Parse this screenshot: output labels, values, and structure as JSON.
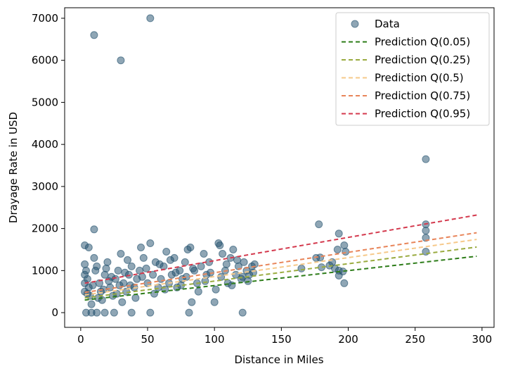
{
  "chart_data": {
    "type": "scatter",
    "title": "",
    "xlabel": "Distance in Miles",
    "ylabel": "Drayage Rate in USD",
    "xlim": [
      -12,
      309
    ],
    "ylim": [
      -350,
      7250
    ],
    "xticks": [
      0,
      50,
      100,
      150,
      200,
      250,
      300
    ],
    "yticks": [
      0,
      1000,
      2000,
      3000,
      4000,
      5000,
      6000,
      7000
    ],
    "grid": false,
    "legend_position": "top-right",
    "scatter": {
      "name": "Data",
      "color": "#1f4e6b",
      "points": [
        [
          52,
          7000
        ],
        [
          10,
          6600
        ],
        [
          30,
          6000
        ],
        [
          258,
          3650
        ],
        [
          258,
          2100
        ],
        [
          258,
          1950
        ],
        [
          258,
          1780
        ],
        [
          258,
          1450
        ],
        [
          10,
          1980
        ],
        [
          178,
          2100
        ],
        [
          193,
          1880
        ],
        [
          197,
          1600
        ],
        [
          192,
          1500
        ],
        [
          198,
          1450
        ],
        [
          190,
          1050
        ],
        [
          193,
          1000
        ],
        [
          196,
          980
        ],
        [
          197,
          700
        ],
        [
          193,
          880
        ],
        [
          188,
          1200
        ],
        [
          176,
          1300
        ],
        [
          179,
          1310
        ],
        [
          165,
          1050
        ],
        [
          180,
          1080
        ],
        [
          186,
          1120
        ],
        [
          3,
          1600
        ],
        [
          6,
          1550
        ],
        [
          10,
          1300
        ],
        [
          4,
          0
        ],
        [
          8,
          0
        ],
        [
          12,
          0
        ],
        [
          18,
          0
        ],
        [
          25,
          0
        ],
        [
          38,
          0
        ],
        [
          52,
          0
        ],
        [
          81,
          0
        ],
        [
          121,
          0
        ],
        [
          4,
          1000
        ],
        [
          5,
          800
        ],
        [
          6,
          600
        ],
        [
          7,
          400
        ],
        [
          8,
          200
        ],
        [
          12,
          1100
        ],
        [
          14,
          700
        ],
        [
          15,
          500
        ],
        [
          16,
          300
        ],
        [
          18,
          900
        ],
        [
          20,
          1200
        ],
        [
          22,
          600
        ],
        [
          24,
          400
        ],
        [
          26,
          800
        ],
        [
          28,
          1000
        ],
        [
          30,
          1400
        ],
        [
          32,
          700
        ],
        [
          34,
          500
        ],
        [
          36,
          900
        ],
        [
          38,
          1100
        ],
        [
          40,
          600
        ],
        [
          42,
          800
        ],
        [
          44,
          1000
        ],
        [
          45,
          1550
        ],
        [
          47,
          1300
        ],
        [
          50,
          700
        ],
        [
          52,
          1650
        ],
        [
          54,
          900
        ],
        [
          56,
          1200
        ],
        [
          58,
          600
        ],
        [
          60,
          800
        ],
        [
          62,
          1100
        ],
        [
          64,
          1450
        ],
        [
          66,
          700
        ],
        [
          68,
          900
        ],
        [
          70,
          1300
        ],
        [
          72,
          600
        ],
        [
          74,
          1000
        ],
        [
          76,
          800
        ],
        [
          78,
          1200
        ],
        [
          80,
          1500
        ],
        [
          82,
          1550
        ],
        [
          83,
          250
        ],
        [
          85,
          1000
        ],
        [
          87,
          700
        ],
        [
          90,
          1100
        ],
        [
          92,
          1400
        ],
        [
          94,
          900
        ],
        [
          96,
          1200
        ],
        [
          100,
          250
        ],
        [
          103,
          1650
        ],
        [
          104,
          1600
        ],
        [
          106,
          1400
        ],
        [
          108,
          1000
        ],
        [
          110,
          700
        ],
        [
          112,
          1300
        ],
        [
          114,
          1500
        ],
        [
          116,
          900
        ],
        [
          118,
          1100
        ],
        [
          120,
          800
        ],
        [
          122,
          1200
        ],
        [
          124,
          1000
        ],
        [
          126,
          900
        ],
        [
          128,
          1100
        ],
        [
          130,
          1150
        ],
        [
          5,
          450
        ],
        [
          9,
          650
        ],
        [
          13,
          350
        ],
        [
          17,
          550
        ],
        [
          21,
          750
        ],
        [
          27,
          450
        ],
        [
          33,
          950
        ],
        [
          37,
          650
        ],
        [
          41,
          350
        ],
        [
          46,
          850
        ],
        [
          49,
          1050
        ],
        [
          55,
          450
        ],
        [
          59,
          1150
        ],
        [
          63,
          550
        ],
        [
          67,
          1250
        ],
        [
          71,
          950
        ],
        [
          75,
          650
        ],
        [
          79,
          850
        ],
        [
          84,
          1050
        ],
        [
          88,
          500
        ],
        [
          93,
          750
        ],
        [
          97,
          950
        ],
        [
          101,
          550
        ],
        [
          105,
          850
        ],
        [
          109,
          1150
        ],
        [
          113,
          650
        ],
        [
          117,
          1250
        ],
        [
          121,
          850
        ],
        [
          125,
          750
        ],
        [
          129,
          950
        ],
        [
          3,
          700
        ],
        [
          3,
          500
        ],
        [
          3,
          900
        ],
        [
          3,
          1150
        ],
        [
          11,
          1000
        ],
        [
          19,
          1050
        ],
        [
          23,
          850
        ],
        [
          29,
          650
        ],
        [
          31,
          250
        ],
        [
          35,
          1250
        ]
      ]
    },
    "series": [
      {
        "name": "Prediction Q(0.05)",
        "color": "#2e7d1a",
        "x": [
          3,
          296
        ],
        "y": [
          300,
          1340
        ]
      },
      {
        "name": "Prediction Q(0.25)",
        "color": "#9aab40",
        "x": [
          3,
          296
        ],
        "y": [
          350,
          1560
        ]
      },
      {
        "name": "Prediction Q(0.5)",
        "color": "#f6c98a",
        "x": [
          3,
          296
        ],
        "y": [
          420,
          1740
        ]
      },
      {
        "name": "Prediction Q(0.75)",
        "color": "#e8855a",
        "x": [
          3,
          296
        ],
        "y": [
          480,
          1900
        ]
      },
      {
        "name": "Prediction Q(0.95)",
        "color": "#d43a4e",
        "x": [
          3,
          296
        ],
        "y": [
          700,
          2320
        ]
      }
    ]
  }
}
